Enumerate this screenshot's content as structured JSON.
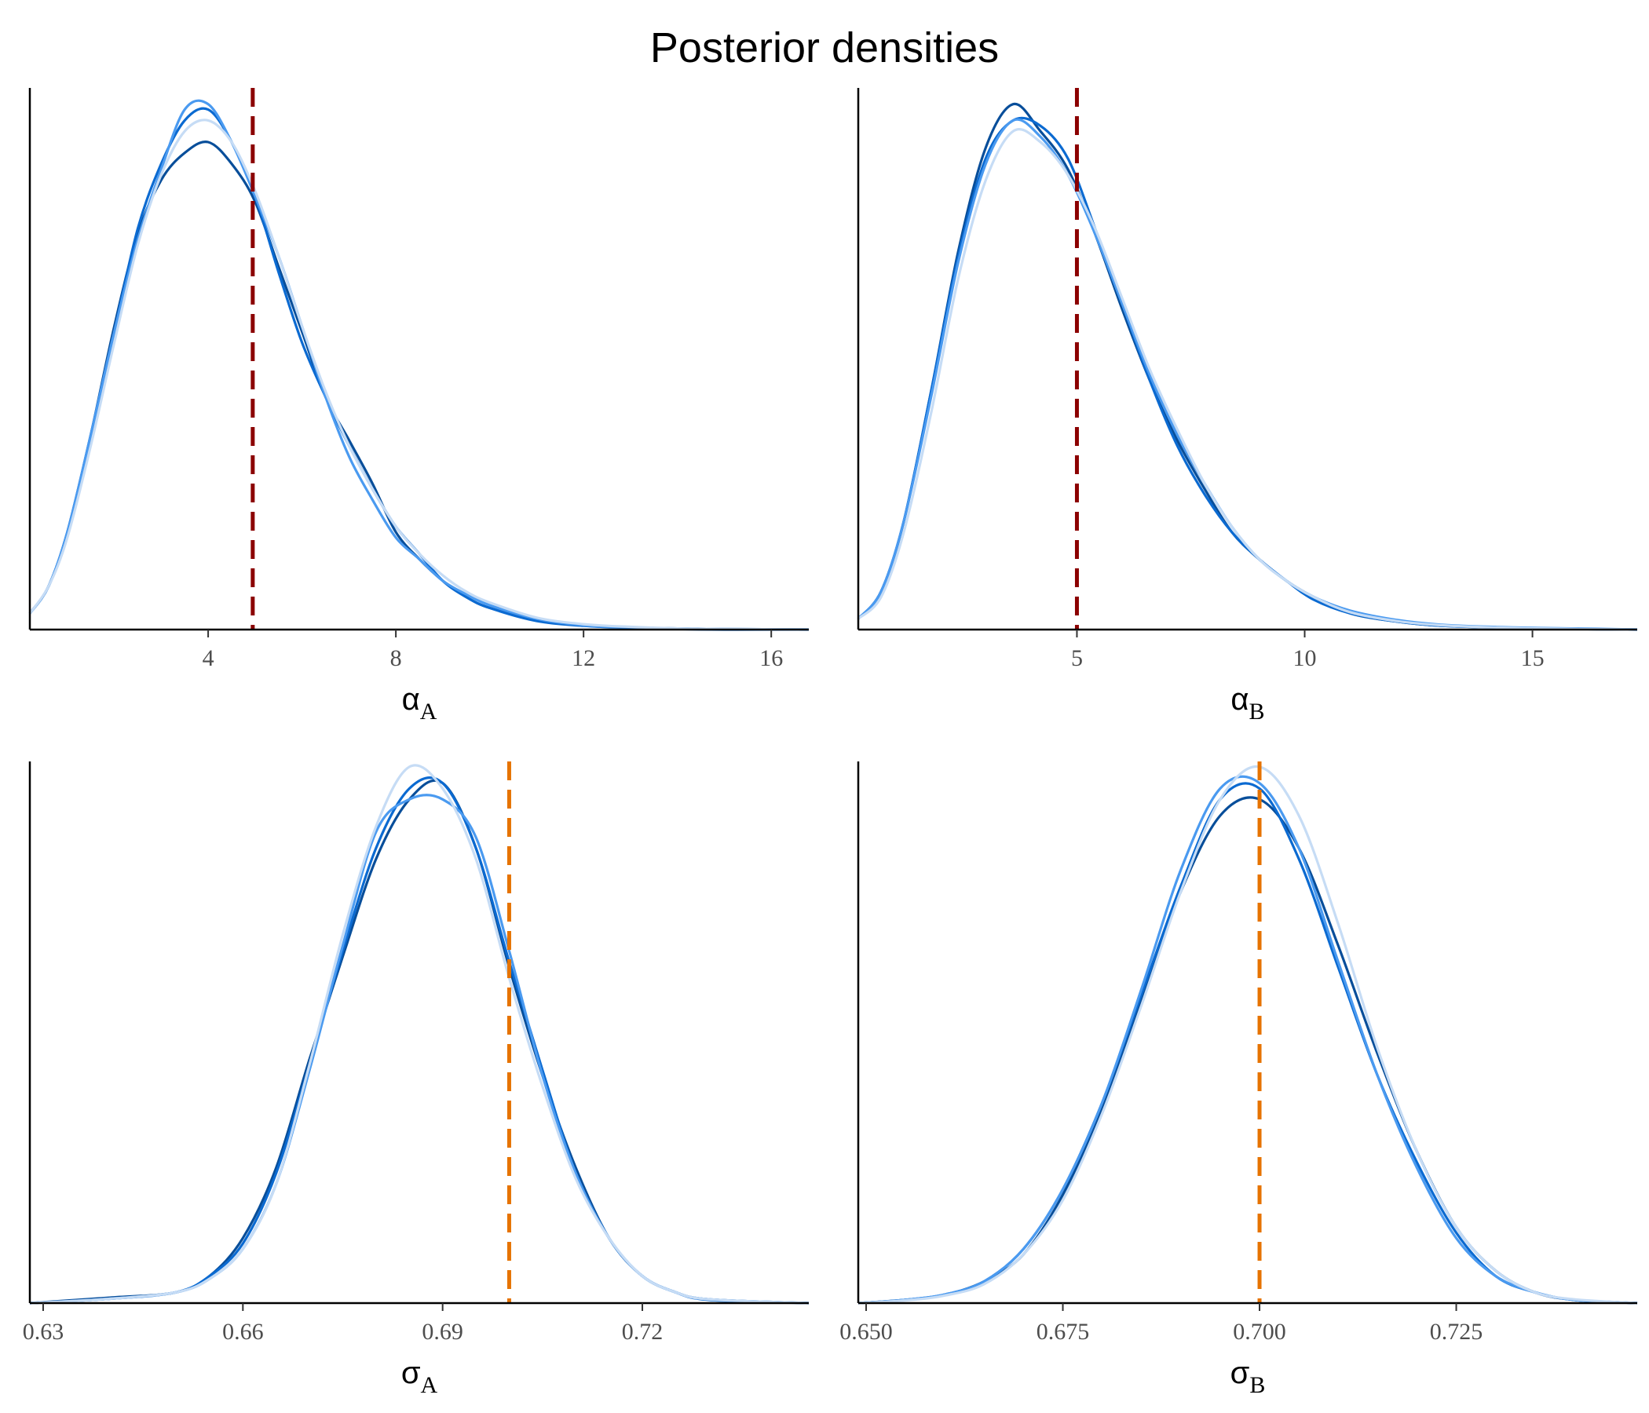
{
  "title": "Posterior densities",
  "colors": {
    "chain_1": "#084e9a",
    "chain_2": "#0b6ad1",
    "chain_3": "#4a9af0",
    "chain_4": "#c6dcf5",
    "ref_dark_red": "#8b0000",
    "ref_orange": "#e67300",
    "axis": "#000000"
  },
  "chart_data": [
    {
      "id": "alpha-a",
      "type": "line",
      "xlabel": "α",
      "xlabel_sub": "A",
      "xlim": [
        0.2,
        16.8
      ],
      "xticks": [
        4,
        8,
        12,
        16
      ],
      "xtick_labels": [
        "4",
        "8",
        "12",
        "16"
      ],
      "y_axis_labels_shown": false,
      "reference_line": {
        "x": 4.95,
        "style": "dashed",
        "color": "#8b0000"
      },
      "series": [
        {
          "x": [
            0.2,
            0.6,
            1.0,
            1.5,
            2.0,
            2.5,
            3.0,
            3.5,
            4.0,
            4.5,
            5.0,
            5.5,
            6.0,
            6.5,
            7.0,
            7.5,
            8.0,
            8.5,
            9.0,
            9.5,
            10.0,
            11.0,
            12.0,
            13.0,
            14.0,
            15.0,
            16.8
          ],
          "y": [
            0.03,
            0.08,
            0.18,
            0.36,
            0.56,
            0.73,
            0.83,
            0.88,
            0.9,
            0.86,
            0.79,
            0.67,
            0.55,
            0.43,
            0.35,
            0.27,
            0.18,
            0.13,
            0.09,
            0.06,
            0.04,
            0.018,
            0.008,
            0.004,
            0.002,
            0.001,
            0.0
          ]
        },
        {
          "x": [
            0.2,
            0.6,
            1.0,
            1.5,
            2.0,
            2.5,
            3.0,
            3.5,
            4.0,
            4.5,
            5.0,
            5.5,
            6.0,
            6.5,
            7.0,
            7.5,
            8.0,
            8.5,
            9.0,
            9.5,
            10.0,
            11.0,
            12.0,
            13.0,
            14.0,
            15.0,
            16.8
          ],
          "y": [
            0.03,
            0.08,
            0.18,
            0.36,
            0.55,
            0.74,
            0.86,
            0.94,
            0.96,
            0.9,
            0.8,
            0.66,
            0.53,
            0.43,
            0.34,
            0.26,
            0.19,
            0.14,
            0.09,
            0.06,
            0.04,
            0.016,
            0.007,
            0.003,
            0.001,
            0.0,
            0.0
          ]
        },
        {
          "x": [
            0.2,
            0.6,
            1.0,
            1.5,
            2.0,
            2.5,
            3.0,
            3.5,
            4.0,
            4.5,
            5.0,
            5.5,
            6.0,
            6.5,
            7.0,
            7.5,
            8.0,
            8.5,
            9.0,
            9.5,
            10.0,
            11.0,
            12.0,
            13.0,
            14.0,
            15.0,
            16.8
          ],
          "y": [
            0.03,
            0.08,
            0.18,
            0.36,
            0.55,
            0.72,
            0.85,
            0.96,
            0.97,
            0.9,
            0.8,
            0.69,
            0.56,
            0.43,
            0.32,
            0.24,
            0.17,
            0.13,
            0.09,
            0.065,
            0.045,
            0.02,
            0.008,
            0.004,
            0.002,
            0.001,
            0.0
          ]
        },
        {
          "x": [
            0.2,
            0.6,
            1.0,
            1.5,
            2.0,
            2.5,
            3.0,
            3.5,
            4.0,
            4.5,
            5.0,
            5.5,
            6.0,
            6.5,
            7.0,
            7.5,
            8.0,
            8.5,
            9.0,
            9.5,
            10.0,
            11.0,
            12.0,
            13.0,
            14.0,
            15.0,
            16.8
          ],
          "y": [
            0.03,
            0.08,
            0.17,
            0.34,
            0.53,
            0.71,
            0.84,
            0.92,
            0.94,
            0.9,
            0.81,
            0.69,
            0.56,
            0.44,
            0.34,
            0.26,
            0.19,
            0.14,
            0.1,
            0.07,
            0.05,
            0.022,
            0.01,
            0.005,
            0.002,
            0.001,
            0.0
          ]
        }
      ]
    },
    {
      "id": "alpha-b",
      "type": "line",
      "xlabel": "α",
      "xlabel_sub": "B",
      "xlim": [
        0.2,
        17.3
      ],
      "xticks": [
        5,
        10,
        15
      ],
      "xtick_labels": [
        "5",
        "10",
        "15"
      ],
      "y_axis_labels_shown": false,
      "reference_line": {
        "x": 5.0,
        "style": "dashed",
        "color": "#8b0000"
      },
      "series": [
        {
          "x": [
            0.2,
            0.7,
            1.2,
            1.8,
            2.4,
            3.0,
            3.6,
            4.2,
            4.8,
            5.4,
            6.0,
            6.6,
            7.2,
            7.8,
            8.4,
            9.0,
            9.6,
            10.2,
            11.0,
            12.0,
            13.0,
            14.5,
            16.0,
            17.3
          ],
          "y": [
            0.02,
            0.07,
            0.2,
            0.44,
            0.7,
            0.89,
            0.97,
            0.92,
            0.85,
            0.73,
            0.59,
            0.46,
            0.35,
            0.26,
            0.18,
            0.13,
            0.09,
            0.06,
            0.03,
            0.015,
            0.007,
            0.003,
            0.001,
            0.0
          ]
        },
        {
          "x": [
            0.2,
            0.7,
            1.2,
            1.8,
            2.4,
            3.0,
            3.6,
            4.2,
            4.8,
            5.4,
            6.0,
            6.6,
            7.2,
            7.8,
            8.4,
            9.0,
            9.6,
            10.2,
            11.0,
            12.0,
            13.0,
            14.5,
            16.0,
            17.3
          ],
          "y": [
            0.02,
            0.07,
            0.2,
            0.44,
            0.69,
            0.87,
            0.94,
            0.93,
            0.87,
            0.74,
            0.6,
            0.46,
            0.34,
            0.25,
            0.18,
            0.13,
            0.09,
            0.055,
            0.03,
            0.015,
            0.007,
            0.003,
            0.001,
            0.0
          ]
        },
        {
          "x": [
            0.2,
            0.7,
            1.2,
            1.8,
            2.4,
            3.0,
            3.6,
            4.2,
            4.8,
            5.4,
            6.0,
            6.6,
            7.2,
            7.8,
            8.4,
            9.0,
            9.6,
            10.2,
            11.0,
            12.0,
            13.0,
            14.5,
            16.0,
            17.3
          ],
          "y": [
            0.02,
            0.07,
            0.2,
            0.43,
            0.68,
            0.86,
            0.94,
            0.91,
            0.84,
            0.73,
            0.6,
            0.47,
            0.36,
            0.27,
            0.19,
            0.13,
            0.09,
            0.06,
            0.035,
            0.018,
            0.009,
            0.004,
            0.002,
            0.0
          ]
        },
        {
          "x": [
            0.2,
            0.7,
            1.2,
            1.8,
            2.4,
            3.0,
            3.6,
            4.2,
            4.8,
            5.4,
            6.0,
            6.6,
            7.2,
            7.8,
            8.4,
            9.0,
            9.6,
            10.2,
            11.0,
            12.0,
            13.0,
            14.5,
            16.0,
            17.3
          ],
          "y": [
            0.02,
            0.06,
            0.18,
            0.4,
            0.65,
            0.83,
            0.92,
            0.9,
            0.84,
            0.74,
            0.61,
            0.48,
            0.37,
            0.27,
            0.19,
            0.13,
            0.09,
            0.06,
            0.032,
            0.016,
            0.008,
            0.003,
            0.001,
            0.0
          ]
        }
      ]
    },
    {
      "id": "sigma-a",
      "type": "line",
      "xlabel": "σ",
      "xlabel_sub": "A",
      "xlim": [
        0.628,
        0.745
      ],
      "xticks": [
        0.63,
        0.66,
        0.69,
        0.72
      ],
      "xtick_labels": [
        "0.63",
        "0.66",
        "0.69",
        "0.72"
      ],
      "y_axis_labels_shown": false,
      "reference_line": {
        "x": 0.7,
        "style": "dashed",
        "color": "#e67300"
      },
      "series": [
        {
          "x": [
            0.628,
            0.64,
            0.65,
            0.655,
            0.66,
            0.665,
            0.67,
            0.675,
            0.68,
            0.685,
            0.69,
            0.695,
            0.7,
            0.705,
            0.71,
            0.715,
            0.72,
            0.725,
            0.73,
            0.745
          ],
          "y": [
            0.0,
            0.01,
            0.02,
            0.05,
            0.12,
            0.25,
            0.45,
            0.64,
            0.82,
            0.93,
            0.96,
            0.84,
            0.62,
            0.42,
            0.25,
            0.12,
            0.05,
            0.02,
            0.007,
            0.0
          ]
        },
        {
          "x": [
            0.628,
            0.64,
            0.65,
            0.655,
            0.66,
            0.665,
            0.67,
            0.675,
            0.68,
            0.685,
            0.69,
            0.695,
            0.7,
            0.705,
            0.71,
            0.715,
            0.72,
            0.725,
            0.73,
            0.745
          ],
          "y": [
            0.0,
            0.008,
            0.02,
            0.05,
            0.11,
            0.24,
            0.44,
            0.65,
            0.84,
            0.95,
            0.96,
            0.84,
            0.63,
            0.43,
            0.24,
            0.12,
            0.05,
            0.02,
            0.006,
            0.0
          ]
        },
        {
          "x": [
            0.628,
            0.64,
            0.65,
            0.655,
            0.66,
            0.665,
            0.67,
            0.675,
            0.68,
            0.685,
            0.69,
            0.695,
            0.7,
            0.705,
            0.71,
            0.715,
            0.72,
            0.725,
            0.73,
            0.745
          ],
          "y": [
            0.0,
            0.008,
            0.02,
            0.045,
            0.1,
            0.22,
            0.43,
            0.66,
            0.87,
            0.93,
            0.93,
            0.86,
            0.65,
            0.42,
            0.24,
            0.12,
            0.05,
            0.02,
            0.007,
            0.0
          ]
        },
        {
          "x": [
            0.628,
            0.64,
            0.65,
            0.655,
            0.66,
            0.665,
            0.67,
            0.675,
            0.68,
            0.685,
            0.69,
            0.695,
            0.7,
            0.705,
            0.71,
            0.715,
            0.72,
            0.725,
            0.73,
            0.745
          ],
          "y": [
            0.0,
            0.008,
            0.02,
            0.045,
            0.1,
            0.22,
            0.44,
            0.68,
            0.88,
            0.99,
            0.95,
            0.82,
            0.6,
            0.4,
            0.23,
            0.12,
            0.05,
            0.02,
            0.007,
            0.0
          ]
        }
      ]
    },
    {
      "id": "sigma-b",
      "type": "line",
      "xlabel": "σ",
      "xlabel_sub": "B",
      "xlim": [
        0.649,
        0.748
      ],
      "xticks": [
        0.65,
        0.675,
        0.7,
        0.725
      ],
      "xtick_labels": [
        "0.650",
        "0.675",
        "0.700",
        "0.725"
      ],
      "y_axis_labels_shown": false,
      "reference_line": {
        "x": 0.7,
        "style": "dashed",
        "color": "#e67300"
      },
      "series": [
        {
          "x": [
            0.649,
            0.655,
            0.66,
            0.665,
            0.67,
            0.675,
            0.68,
            0.685,
            0.69,
            0.695,
            0.7,
            0.705,
            0.71,
            0.715,
            0.72,
            0.725,
            0.73,
            0.735,
            0.74,
            0.748
          ],
          "y": [
            0.0,
            0.006,
            0.015,
            0.04,
            0.09,
            0.2,
            0.36,
            0.56,
            0.76,
            0.9,
            0.93,
            0.84,
            0.66,
            0.46,
            0.28,
            0.14,
            0.06,
            0.02,
            0.006,
            0.0
          ]
        },
        {
          "x": [
            0.649,
            0.655,
            0.66,
            0.665,
            0.67,
            0.675,
            0.68,
            0.685,
            0.69,
            0.695,
            0.7,
            0.705,
            0.71,
            0.715,
            0.72,
            0.725,
            0.73,
            0.735,
            0.74,
            0.748
          ],
          "y": [
            0.0,
            0.006,
            0.016,
            0.04,
            0.1,
            0.21,
            0.37,
            0.57,
            0.77,
            0.93,
            0.95,
            0.82,
            0.62,
            0.42,
            0.26,
            0.13,
            0.05,
            0.02,
            0.006,
            0.0
          ]
        },
        {
          "x": [
            0.649,
            0.655,
            0.66,
            0.665,
            0.67,
            0.675,
            0.68,
            0.685,
            0.69,
            0.695,
            0.7,
            0.705,
            0.71,
            0.715,
            0.72,
            0.725,
            0.73,
            0.735,
            0.74,
            0.748
          ],
          "y": [
            0.0,
            0.006,
            0.016,
            0.04,
            0.1,
            0.21,
            0.37,
            0.58,
            0.8,
            0.95,
            0.96,
            0.84,
            0.63,
            0.42,
            0.25,
            0.12,
            0.05,
            0.02,
            0.006,
            0.0
          ]
        },
        {
          "x": [
            0.649,
            0.655,
            0.66,
            0.665,
            0.67,
            0.675,
            0.68,
            0.685,
            0.69,
            0.695,
            0.7,
            0.705,
            0.71,
            0.715,
            0.72,
            0.725,
            0.73,
            0.735,
            0.74,
            0.748
          ],
          "y": [
            0.0,
            0.005,
            0.014,
            0.035,
            0.09,
            0.19,
            0.35,
            0.55,
            0.76,
            0.93,
            0.99,
            0.9,
            0.7,
            0.47,
            0.28,
            0.14,
            0.06,
            0.02,
            0.007,
            0.0
          ]
        }
      ]
    }
  ]
}
